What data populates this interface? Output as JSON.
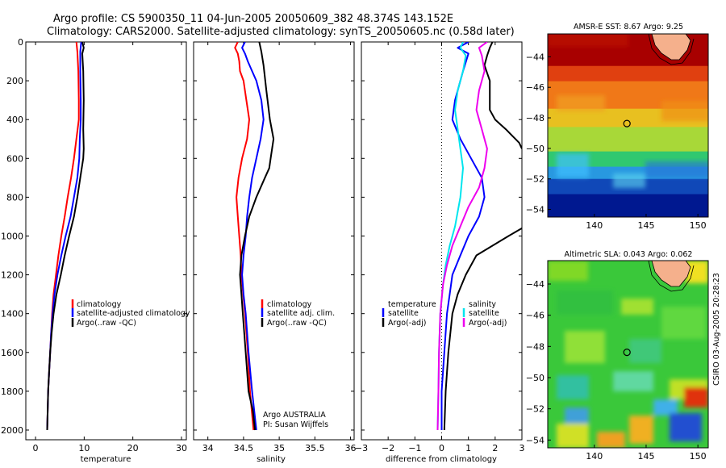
{
  "title_line1": "Argo profile: CS 5900350_11 04-Jun-2005 20050609_382 48.374S 143.152E",
  "title_line2": "Climatology: CARS2000. Satellite-adjusted climatology: synTS_20050605.nc (0.58d later)",
  "credit_label": "Argo AUSTRALIA",
  "pi_label": "PI: Susan Wijffels",
  "timestamp": "CSIRO 03-Aug-2005 20:28:23",
  "colors": {
    "climatology": "#ff0000",
    "satellite": "#0000ff",
    "argo": "#000000",
    "salinity_satellite": "#00e5ee",
    "salinity_argo": "#ee00ee",
    "land": "#f5b08c"
  },
  "chart_data": [
    {
      "type": "line",
      "id": "temperature",
      "xlabel": "temperature",
      "xlim": [
        -2,
        31
      ],
      "ylim": [
        2050,
        0
      ],
      "xticks": [
        0,
        10,
        20,
        30
      ],
      "yticks": [
        0,
        200,
        400,
        600,
        800,
        1000,
        1200,
        1400,
        1600,
        1800,
        2000
      ],
      "legend": [
        "climatology",
        "satellite-adjusted climatology",
        "Argo(..raw -QC)"
      ],
      "series": [
        {
          "name": "climatology",
          "color": "#ff0000",
          "points": [
            [
              8.4,
              0
            ],
            [
              8.6,
              50
            ],
            [
              8.8,
              150
            ],
            [
              8.9,
              300
            ],
            [
              8.9,
              400
            ],
            [
              8.4,
              500
            ],
            [
              7.9,
              600
            ],
            [
              7.3,
              700
            ],
            [
              6.6,
              800
            ],
            [
              6.0,
              900
            ],
            [
              5.3,
              1000
            ],
            [
              4.7,
              1100
            ],
            [
              4.2,
              1200
            ],
            [
              3.7,
              1300
            ],
            [
              3.4,
              1400
            ],
            [
              3.2,
              1500
            ],
            [
              3.0,
              1600
            ],
            [
              2.8,
              1700
            ],
            [
              2.6,
              1800
            ],
            [
              2.5,
              1900
            ],
            [
              2.4,
              2000
            ]
          ]
        },
        {
          "name": "satellite",
          "color": "#0000ff",
          "points": [
            [
              9.4,
              0
            ],
            [
              9.2,
              50
            ],
            [
              9.2,
              150
            ],
            [
              9.3,
              300
            ],
            [
              9.3,
              400
            ],
            [
              9.1,
              500
            ],
            [
              9.0,
              600
            ],
            [
              8.6,
              700
            ],
            [
              7.9,
              800
            ],
            [
              7.2,
              900
            ],
            [
              6.2,
              1000
            ],
            [
              5.3,
              1100
            ],
            [
              4.5,
              1200
            ],
            [
              3.9,
              1300
            ],
            [
              3.5,
              1400
            ],
            [
              3.2,
              1500
            ],
            [
              3.0,
              1600
            ],
            [
              2.8,
              1700
            ],
            [
              2.6,
              1800
            ],
            [
              2.5,
              1900
            ],
            [
              2.4,
              2000
            ]
          ]
        },
        {
          "name": "argo",
          "color": "#000000",
          "points": [
            [
              9.6,
              0
            ],
            [
              9.9,
              30
            ],
            [
              9.6,
              60
            ],
            [
              9.8,
              150
            ],
            [
              9.9,
              300
            ],
            [
              9.8,
              450
            ],
            [
              9.9,
              550
            ],
            [
              9.8,
              600
            ],
            [
              9.2,
              700
            ],
            [
              8.6,
              800
            ],
            [
              7.9,
              900
            ],
            [
              6.9,
              1000
            ],
            [
              6.0,
              1100
            ],
            [
              5.2,
              1200
            ],
            [
              4.3,
              1300
            ],
            [
              3.7,
              1400
            ],
            [
              3.3,
              1500
            ],
            [
              3.0,
              1600
            ],
            [
              2.8,
              1700
            ],
            [
              2.6,
              1800
            ],
            [
              2.5,
              1900
            ],
            [
              2.4,
              2000
            ]
          ]
        }
      ]
    },
    {
      "type": "line",
      "id": "salinity",
      "xlabel": "salinity",
      "xlim": [
        33.8,
        36.05
      ],
      "ylim": [
        2050,
        0
      ],
      "xticks": [
        34,
        34.5,
        35,
        35.5,
        36
      ],
      "legend": [
        "climatology",
        "satellite adj. clim.",
        "Argo(..raw -QC)"
      ],
      "series": [
        {
          "name": "climatology",
          "color": "#ff0000",
          "points": [
            [
              34.42,
              0
            ],
            [
              34.38,
              30
            ],
            [
              34.42,
              60
            ],
            [
              34.44,
              100
            ],
            [
              34.45,
              150
            ],
            [
              34.5,
              200
            ],
            [
              34.54,
              300
            ],
            [
              34.58,
              400
            ],
            [
              34.55,
              500
            ],
            [
              34.48,
              600
            ],
            [
              34.43,
              700
            ],
            [
              34.4,
              800
            ],
            [
              34.42,
              900
            ],
            [
              34.44,
              1000
            ],
            [
              34.46,
              1100
            ],
            [
              34.47,
              1200
            ],
            [
              34.52,
              1400
            ],
            [
              34.56,
              1600
            ],
            [
              34.59,
              1800
            ],
            [
              34.64,
              2000
            ]
          ]
        },
        {
          "name": "satellite",
          "color": "#0000ff",
          "points": [
            [
              34.52,
              0
            ],
            [
              34.48,
              30
            ],
            [
              34.52,
              60
            ],
            [
              34.56,
              100
            ],
            [
              34.62,
              150
            ],
            [
              34.68,
              200
            ],
            [
              34.75,
              300
            ],
            [
              34.78,
              400
            ],
            [
              34.74,
              500
            ],
            [
              34.68,
              600
            ],
            [
              34.62,
              700
            ],
            [
              34.58,
              800
            ],
            [
              34.55,
              900
            ],
            [
              34.53,
              1000
            ],
            [
              34.5,
              1100
            ],
            [
              34.48,
              1200
            ],
            [
              34.5,
              1300
            ],
            [
              34.53,
              1400
            ],
            [
              34.57,
              1600
            ],
            [
              34.62,
              1800
            ],
            [
              34.68,
              2000
            ]
          ]
        },
        {
          "name": "argo",
          "color": "#000000",
          "points": [
            [
              34.72,
              0
            ],
            [
              34.75,
              50
            ],
            [
              34.78,
              120
            ],
            [
              34.82,
              250
            ],
            [
              34.87,
              400
            ],
            [
              34.92,
              500
            ],
            [
              34.88,
              600
            ],
            [
              34.86,
              650
            ],
            [
              34.8,
              700
            ],
            [
              34.68,
              800
            ],
            [
              34.58,
              900
            ],
            [
              34.52,
              1000
            ],
            [
              34.47,
              1100
            ],
            [
              34.45,
              1200
            ],
            [
              34.47,
              1300
            ],
            [
              34.49,
              1400
            ],
            [
              34.53,
              1600
            ],
            [
              34.57,
              1800
            ],
            [
              34.63,
              1900
            ],
            [
              34.66,
              2000
            ]
          ]
        }
      ]
    },
    {
      "type": "line",
      "id": "difference",
      "xlabel": "difference from climatology",
      "xlim": [
        -3,
        3
      ],
      "ylim": [
        2050,
        0
      ],
      "xticks": [
        -3,
        -2,
        -1,
        0,
        1,
        2,
        3
      ],
      "zero_line": true,
      "legend_left_header": "temperature",
      "legend_left": [
        "satellite",
        "Argo(-adj)"
      ],
      "legend_right_header": "salinity",
      "legend_right": [
        "satellite",
        "Argo(-adj)"
      ],
      "series": [
        {
          "name": "temperature satellite",
          "color": "#0000ff",
          "points": [
            [
              1.0,
              0
            ],
            [
              0.6,
              30
            ],
            [
              1.0,
              60
            ],
            [
              0.8,
              150
            ],
            [
              0.5,
              300
            ],
            [
              0.4,
              400
            ],
            [
              0.7,
              500
            ],
            [
              1.1,
              600
            ],
            [
              1.5,
              700
            ],
            [
              1.6,
              800
            ],
            [
              1.4,
              900
            ],
            [
              1.0,
              1000
            ],
            [
              0.7,
              1100
            ],
            [
              0.4,
              1200
            ],
            [
              0.3,
              1300
            ],
            [
              0.2,
              1400
            ],
            [
              0.1,
              1600
            ],
            [
              0.0,
              1800
            ],
            [
              0.0,
              2000
            ]
          ]
        },
        {
          "name": "temperature Argo(-adj)",
          "color": "#000000",
          "points": [
            [
              1.9,
              0
            ],
            [
              1.8,
              30
            ],
            [
              1.7,
              70
            ],
            [
              1.6,
              120
            ],
            [
              1.8,
              200
            ],
            [
              1.8,
              350
            ],
            [
              2.0,
              400
            ],
            [
              2.4,
              450
            ],
            [
              2.9,
              520
            ],
            [
              3.0,
              550
            ]
          ]
        },
        {
          "name": "temperature Argo(-adj) deep",
          "color": "#000000",
          "points": [
            [
              3.0,
              960
            ],
            [
              2.5,
              1000
            ],
            [
              1.9,
              1050
            ],
            [
              1.3,
              1100
            ],
            [
              0.9,
              1200
            ],
            [
              0.6,
              1300
            ],
            [
              0.4,
              1400
            ],
            [
              0.25,
              1600
            ],
            [
              0.15,
              1800
            ],
            [
              0.1,
              2000
            ]
          ]
        },
        {
          "name": "salinity satellite",
          "color": "#00e5ee",
          "points": [
            [
              0.8,
              0
            ],
            [
              0.7,
              30
            ],
            [
              0.9,
              70
            ],
            [
              0.8,
              150
            ],
            [
              0.6,
              250
            ],
            [
              0.5,
              350
            ],
            [
              0.6,
              450
            ],
            [
              0.7,
              550
            ],
            [
              0.8,
              650
            ],
            [
              0.7,
              800
            ],
            [
              0.5,
              950
            ],
            [
              0.3,
              1050
            ],
            [
              0.15,
              1150
            ],
            [
              0.05,
              1250
            ],
            [
              -0.05,
              1400
            ],
            [
              -0.1,
              1600
            ],
            [
              -0.12,
              1800
            ],
            [
              -0.15,
              2000
            ]
          ]
        },
        {
          "name": "salinity Argo(-adj)",
          "color": "#ee00ee",
          "points": [
            [
              1.7,
              0
            ],
            [
              1.4,
              30
            ],
            [
              1.5,
              70
            ],
            [
              1.6,
              150
            ],
            [
              1.4,
              250
            ],
            [
              1.3,
              350
            ],
            [
              1.5,
              450
            ],
            [
              1.7,
              550
            ],
            [
              1.6,
              650
            ],
            [
              1.4,
              750
            ],
            [
              1.0,
              850
            ],
            [
              0.7,
              950
            ],
            [
              0.4,
              1050
            ],
            [
              0.2,
              1150
            ],
            [
              0.05,
              1250
            ],
            [
              -0.05,
              1400
            ],
            [
              -0.1,
              1600
            ],
            [
              -0.12,
              1800
            ],
            [
              -0.15,
              2000
            ]
          ]
        }
      ]
    },
    {
      "type": "heatmap",
      "id": "sst_map",
      "title": "AMSR-E SST: 8.67 Argo: 9.25",
      "xlim": [
        135.5,
        151
      ],
      "ylim": [
        -54.5,
        -42.5
      ],
      "xticks": [
        140,
        145,
        150
      ],
      "yticks": [
        -44,
        -46,
        -48,
        -50,
        -52,
        -54
      ],
      "argo_position": [
        143.152,
        -48.374
      ],
      "bands": [
        {
          "y": [
            -42.5,
            -44.6
          ],
          "color": "#a80000"
        },
        {
          "y": [
            -44.6,
            -45.6
          ],
          "color": "#e04010"
        },
        {
          "y": [
            -45.6,
            -47.4
          ],
          "color": "#f07818"
        },
        {
          "y": [
            -47.4,
            -48.6
          ],
          "color": "#e8c020"
        },
        {
          "y": [
            -48.6,
            -50.2
          ],
          "color": "#a8d838"
        },
        {
          "y": [
            -50.2,
            -51.2
          ],
          "color": "#30c870"
        },
        {
          "y": [
            -51.2,
            -52.0
          ],
          "color": "#2898e0"
        },
        {
          "y": [
            -52.0,
            -53.0
          ],
          "color": "#1048b8"
        },
        {
          "y": [
            -53.0,
            -54.5
          ],
          "color": "#001890"
        }
      ]
    },
    {
      "type": "heatmap",
      "id": "sla_map",
      "title": "Altimetric SLA: 0.043 Argo: 0.062",
      "xlim": [
        135.5,
        151
      ],
      "ylim": [
        -54.5,
        -42.5
      ],
      "xticks": [
        140,
        145,
        150
      ],
      "yticks": [
        -44,
        -46,
        -48,
        -50,
        -52,
        -54
      ],
      "argo_position": [
        143.152,
        -48.374
      ]
    }
  ]
}
